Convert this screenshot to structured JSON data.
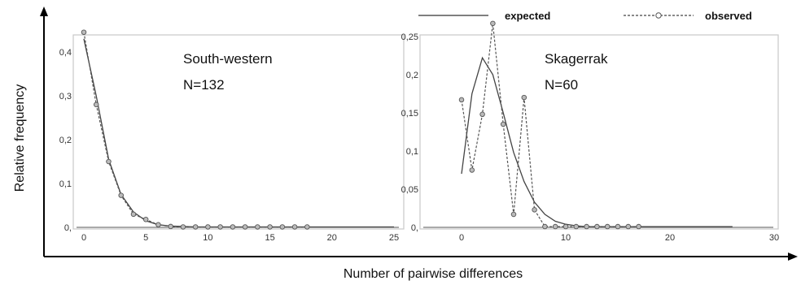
{
  "legend": {
    "expected_label": "expected",
    "observed_label": "observed"
  },
  "axis_titles": {
    "x": "Number of pairwise differences",
    "y": "Relative frequency"
  },
  "chart_data": [
    {
      "type": "line",
      "annotation": [
        "South-western",
        "N=132"
      ],
      "xlim": [
        0,
        25
      ],
      "ylim": [
        0,
        0.45
      ],
      "x_ticks": [
        0,
        5,
        10,
        15,
        20,
        25
      ],
      "y_ticks": [
        0,
        0.1,
        0.2,
        0.3,
        0.4
      ],
      "y_tick_labels": [
        "0,",
        "0,1",
        "0,2",
        "0,3",
        "0,4"
      ],
      "expected": {
        "x": [
          0,
          1,
          2,
          3,
          4,
          5,
          6,
          7,
          8,
          9,
          10,
          12,
          15,
          20,
          25
        ],
        "y": [
          0.43,
          0.3,
          0.155,
          0.075,
          0.035,
          0.015,
          0.006,
          0.003,
          0.002,
          0.001,
          0.001,
          0.001,
          0.001,
          0.001,
          0.001
        ]
      },
      "observed": {
        "x": [
          0,
          1,
          2,
          3,
          4,
          5,
          6,
          7,
          8,
          9,
          10,
          11,
          12,
          13,
          14,
          15,
          16,
          17,
          18
        ],
        "y": [
          0.445,
          0.28,
          0.15,
          0.073,
          0.03,
          0.018,
          0.006,
          0.002,
          0.001,
          0.001,
          0.001,
          0.001,
          0.001,
          0.001,
          0.001,
          0.001,
          0.001,
          0.001,
          0.001
        ]
      }
    },
    {
      "type": "line",
      "annotation": [
        "Skagerrak",
        "N=60"
      ],
      "xlim": [
        0,
        30
      ],
      "ylim": [
        0,
        0.27
      ],
      "x_ticks": [
        0,
        10,
        20,
        30
      ],
      "y_ticks": [
        0,
        0.05,
        0.1,
        0.15,
        0.2,
        0.25
      ],
      "y_tick_labels": [
        "0,",
        "0,05",
        "0,1",
        "0,15",
        "0,2",
        "0,25"
      ],
      "expected": {
        "x": [
          0,
          1,
          2,
          3,
          4,
          5,
          6,
          7,
          8,
          9,
          10,
          11,
          12,
          14,
          16,
          20,
          26
        ],
        "y": [
          0.07,
          0.175,
          0.222,
          0.2,
          0.15,
          0.098,
          0.06,
          0.033,
          0.017,
          0.008,
          0.004,
          0.002,
          0.001,
          0.001,
          0.001,
          0.001,
          0.001
        ]
      },
      "observed": {
        "x": [
          0,
          1,
          2,
          3,
          4,
          5,
          6,
          7,
          8,
          9,
          10,
          11,
          12,
          13,
          14,
          15,
          16,
          17
        ],
        "y": [
          0.167,
          0.075,
          0.148,
          0.267,
          0.135,
          0.017,
          0.17,
          0.023,
          0.001,
          0.001,
          0.001,
          0.001,
          0.001,
          0.001,
          0.001,
          0.001,
          0.001,
          0.001
        ]
      }
    }
  ]
}
